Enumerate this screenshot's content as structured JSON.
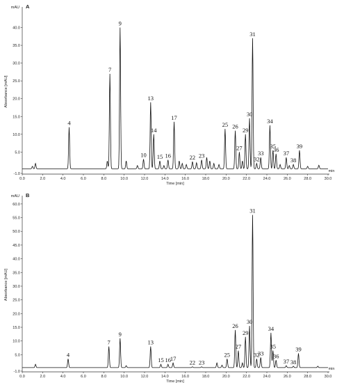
{
  "chart_data": [
    {
      "type": "line",
      "panel": "A",
      "unit": "mAU",
      "xlabel": "Time [min]",
      "x_unit_tick": "min",
      "ylabel": "Absorbance [mAU]",
      "xlim": [
        0,
        30
      ],
      "ylim": [
        -1,
        45
      ],
      "xticks": [
        "0.0",
        "2.0",
        "4.0",
        "6.0",
        "8.0",
        "10.0",
        "12.0",
        "14.0",
        "16.0",
        "18.0",
        "20.0",
        "22.0",
        "24.0",
        "26.0",
        "28.0",
        "30.0"
      ],
      "yticks": [
        "-1.0",
        "5.0",
        "10.0",
        "15.0",
        "20.0",
        "25.0",
        "30.0",
        "35.0",
        "40.0"
      ],
      "baseline": 0.3,
      "peaks": [
        {
          "label": "4",
          "x": 4.6,
          "y": 12.0
        },
        {
          "label": "7",
          "x": 8.6,
          "y": 27.0
        },
        {
          "label": "9",
          "x": 9.6,
          "y": 40.0
        },
        {
          "label": "10",
          "x": 11.9,
          "y": 3.0
        },
        {
          "label": "13",
          "x": 12.6,
          "y": 19.0
        },
        {
          "label": "14",
          "x": 12.9,
          "y": 10.0
        },
        {
          "label": "15",
          "x": 13.5,
          "y": 2.5
        },
        {
          "label": "16",
          "x": 14.3,
          "y": 2.8
        },
        {
          "label": "17",
          "x": 14.9,
          "y": 13.5
        },
        {
          "label": "22",
          "x": 16.7,
          "y": 2.3
        },
        {
          "label": "23",
          "x": 17.6,
          "y": 2.8
        },
        {
          "label": "25",
          "x": 19.9,
          "y": 11.5
        },
        {
          "label": "26",
          "x": 20.9,
          "y": 11.0
        },
        {
          "label": "27",
          "x": 21.3,
          "y": 5.0
        },
        {
          "label": "29",
          "x": 21.9,
          "y": 10.0
        },
        {
          "label": "30",
          "x": 22.3,
          "y": 14.5
        },
        {
          "label": "31",
          "x": 22.6,
          "y": 37.0
        },
        {
          "label": "32",
          "x": 23.0,
          "y": 1.8
        },
        {
          "label": "33",
          "x": 23.4,
          "y": 3.5
        },
        {
          "label": "34",
          "x": 24.3,
          "y": 12.5
        },
        {
          "label": "35",
          "x": 24.6,
          "y": 5.5
        },
        {
          "label": "36",
          "x": 24.9,
          "y": 4.5
        },
        {
          "label": "37",
          "x": 25.9,
          "y": 3.5
        },
        {
          "label": "38",
          "x": 26.6,
          "y": 1.5
        },
        {
          "label": "39",
          "x": 27.2,
          "y": 5.5
        }
      ],
      "minor_peaks": [
        {
          "x": 1.0,
          "y": 1.0
        },
        {
          "x": 1.3,
          "y": 1.8
        },
        {
          "x": 8.35,
          "y": 2.5
        },
        {
          "x": 10.2,
          "y": 2.5
        },
        {
          "x": 11.3,
          "y": 1.2
        },
        {
          "x": 13.9,
          "y": 1.2
        },
        {
          "x": 15.4,
          "y": 2.5
        },
        {
          "x": 15.7,
          "y": 1.8
        },
        {
          "x": 16.1,
          "y": 1.5
        },
        {
          "x": 17.1,
          "y": 2.0
        },
        {
          "x": 18.1,
          "y": 3.5
        },
        {
          "x": 18.4,
          "y": 2.5
        },
        {
          "x": 18.8,
          "y": 1.8
        },
        {
          "x": 19.3,
          "y": 1.5
        },
        {
          "x": 21.6,
          "y": 2.5
        },
        {
          "x": 25.3,
          "y": 1.5
        },
        {
          "x": 26.2,
          "y": 1.2
        },
        {
          "x": 28.0,
          "y": 1.0
        },
        {
          "x": 29.1,
          "y": 1.3
        }
      ]
    },
    {
      "type": "line",
      "panel": "B",
      "unit": "mAU",
      "xlabel": "Time [min]",
      "x_unit_tick": "min",
      "ylabel": "Absorbance [mAU]",
      "xlim": [
        0,
        30
      ],
      "ylim": [
        -1,
        62
      ],
      "xticks": [
        "0.0",
        "2.0",
        "4.0",
        "6.0",
        "8.0",
        "10.0",
        "12.0",
        "14.0",
        "16.0",
        "18.0",
        "20.0",
        "22.0",
        "24.0",
        "26.0",
        "28.0",
        "30.0"
      ],
      "yticks": [
        "-1.0",
        "5.0",
        "10.0",
        "15.0",
        "20.0",
        "25.0",
        "30.0",
        "35.0",
        "40.0",
        "45.0",
        "50.0",
        "55.0",
        "60.0"
      ],
      "baseline": 0.3,
      "peaks": [
        {
          "label": "4",
          "x": 4.5,
          "y": 3.5
        },
        {
          "label": "7",
          "x": 8.5,
          "y": 8.0
        },
        {
          "label": "9",
          "x": 9.6,
          "y": 11.0
        },
        {
          "label": "13",
          "x": 12.6,
          "y": 8.0
        },
        {
          "label": "15",
          "x": 13.6,
          "y": 1.5
        },
        {
          "label": "16",
          "x": 14.3,
          "y": 1.5
        },
        {
          "label": "17",
          "x": 14.8,
          "y": 2.0
        },
        {
          "label": "22",
          "x": 16.7,
          "y": 0.6
        },
        {
          "label": "23",
          "x": 17.6,
          "y": 0.6
        },
        {
          "label": "25",
          "x": 20.1,
          "y": 3.5
        },
        {
          "label": "26",
          "x": 20.9,
          "y": 14.0
        },
        {
          "label": "27",
          "x": 21.2,
          "y": 6.5
        },
        {
          "label": "29",
          "x": 21.9,
          "y": 11.5
        },
        {
          "label": "30",
          "x": 22.3,
          "y": 15.5
        },
        {
          "label": "31",
          "x": 22.6,
          "y": 56.0
        },
        {
          "label": "32",
          "x": 23.0,
          "y": 3.5
        },
        {
          "label": "33",
          "x": 23.4,
          "y": 4.0
        },
        {
          "label": "34",
          "x": 24.4,
          "y": 13.0
        },
        {
          "label": "35",
          "x": 24.6,
          "y": 6.5
        },
        {
          "label": "36",
          "x": 24.9,
          "y": 3.0
        },
        {
          "label": "37",
          "x": 25.9,
          "y": 1.0
        },
        {
          "label": "38",
          "x": 26.6,
          "y": 0.8
        },
        {
          "label": "39",
          "x": 27.1,
          "y": 5.5
        }
      ],
      "minor_peaks": [
        {
          "x": 1.3,
          "y": 1.5
        },
        {
          "x": 10.2,
          "y": 1.0
        },
        {
          "x": 19.1,
          "y": 2.0
        },
        {
          "x": 19.6,
          "y": 1.2
        },
        {
          "x": 21.6,
          "y": 2.0
        },
        {
          "x": 29.0,
          "y": 0.8
        }
      ]
    }
  ]
}
